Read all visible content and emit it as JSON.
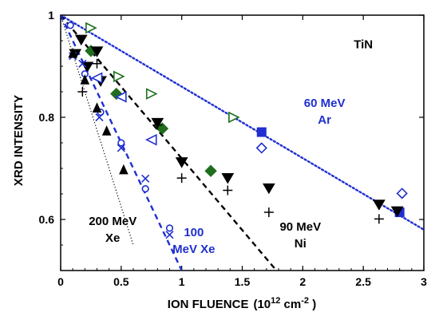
{
  "chart_data": {
    "type": "scatter",
    "xlabel": "ION FLUENCE",
    "xlabel_unit_prefix": "(10",
    "xlabel_unit_exp": "12",
    "xlabel_unit_suffix": " cm",
    "xlabel_unit_exp2": "-2",
    "xlabel_unit_close": " )",
    "ylabel": "XRD INTENSITY",
    "xlim": [
      0,
      3
    ],
    "ylim": [
      0.5,
      1.0
    ],
    "x_ticks": [
      0,
      0.5,
      1,
      1.5,
      2,
      2.5,
      3
    ],
    "x_tick_labels": [
      "0",
      "0.5",
      "1",
      "1.5",
      "2",
      "2.5",
      "3"
    ],
    "y_ticks": [
      0.6,
      0.8,
      1.0
    ],
    "y_tick_labels": [
      "0.6",
      "0.8",
      "1"
    ],
    "annotations": [
      {
        "lines": [
          "TiN"
        ],
        "x": 2.5,
        "y": 0.935,
        "color": "#000000"
      },
      {
        "lines": [
          "60 MeV",
          "Ar"
        ],
        "x": 2.18,
        "y": 0.82,
        "color": "#1f2fd0"
      },
      {
        "lines": [
          "90 MeV",
          "Ni"
        ],
        "x": 1.98,
        "y": 0.578,
        "color": "#000000"
      },
      {
        "lines": [
          "100",
          "MeV Xe"
        ],
        "x": 1.1,
        "y": 0.567,
        "color": "#1f2fd0"
      },
      {
        "lines": [
          "200 MeV",
          "Xe"
        ],
        "x": 0.43,
        "y": 0.589,
        "color": "#000000"
      }
    ],
    "fit_lines": [
      {
        "name": "Ar fit",
        "x": [
          0,
          3
        ],
        "y": [
          1.0,
          0.58
        ],
        "color": "#1f2fd0",
        "style": "dotted"
      },
      {
        "name": "Ni fit",
        "x": [
          0,
          1.8
        ],
        "y": [
          1.0,
          0.495
        ],
        "color": "#000000",
        "style": "dashed"
      },
      {
        "name": "100 MeV Xe fit",
        "x": [
          0,
          1.0
        ],
        "y": [
          1.0,
          0.5
        ],
        "color": "#1f2fd0",
        "style": "dashed"
      },
      {
        "name": "200 MeV Xe fit",
        "x": [
          0,
          0.6
        ],
        "y": [
          1.0,
          0.55
        ],
        "color": "#000000",
        "style": "finedotted"
      }
    ],
    "series": [
      {
        "marker": "triangle-right-open",
        "color": "#1e6e1e",
        "x": [
          0.25,
          0.48,
          0.75,
          1.43
        ],
        "y": [
          0.975,
          0.88,
          0.846,
          0.8
        ]
      },
      {
        "marker": "square-filled",
        "color": "#1f2fd0",
        "x": [
          1.66,
          2.8
        ],
        "y": [
          0.771,
          0.614
        ]
      },
      {
        "marker": "diamond-open",
        "color": "#1f2fd0",
        "x": [
          1.66,
          2.82
        ],
        "y": [
          0.74,
          0.651
        ]
      },
      {
        "marker": "diamond-filled",
        "color": "#1e6e1e",
        "x": [
          0.25,
          0.46,
          0.84,
          1.24
        ],
        "y": [
          0.93,
          0.846,
          0.778,
          0.695
        ]
      },
      {
        "marker": "triangle-down-filled",
        "color": "#000000",
        "x": [
          0.12,
          0.17,
          0.22,
          0.3,
          0.33,
          0.8,
          1.0,
          1.38,
          1.72,
          2.63,
          2.78
        ],
        "y": [
          0.925,
          0.953,
          0.9,
          0.93,
          0.872,
          0.79,
          0.713,
          0.682,
          0.662,
          0.63,
          0.617
        ]
      },
      {
        "marker": "plus",
        "color": "#000000",
        "x": [
          0.3,
          0.8,
          1.0,
          1.38,
          1.72,
          2.63
        ],
        "y": [
          0.905,
          0.785,
          0.681,
          0.657,
          0.614,
          0.601
        ]
      },
      {
        "marker": "triangle-left-open",
        "color": "#1f2fd0",
        "x": [
          0.3,
          0.5,
          0.75
        ],
        "y": [
          0.877,
          0.84,
          0.756
        ]
      },
      {
        "marker": "circle-open",
        "color": "#1f2fd0",
        "x": [
          0.08,
          0.2,
          0.33,
          0.5,
          0.7,
          0.9
        ],
        "y": [
          0.98,
          0.885,
          0.81,
          0.75,
          0.66,
          0.583
        ]
      },
      {
        "marker": "x",
        "color": "#1f2fd0",
        "x": [
          0.1,
          0.18,
          0.32,
          0.5,
          0.7,
          0.9
        ],
        "y": [
          0.92,
          0.905,
          0.8,
          0.74,
          0.68,
          0.57
        ]
      },
      {
        "marker": "triangle-up-filled",
        "color": "#000000",
        "x": [
          0.1,
          0.2,
          0.3,
          0.38,
          0.52
        ],
        "y": [
          0.925,
          0.873,
          0.818,
          0.773,
          0.697
        ]
      },
      {
        "marker": "plus",
        "color": "#000000",
        "x": [
          0.18
        ],
        "y": [
          0.85
        ]
      }
    ]
  }
}
